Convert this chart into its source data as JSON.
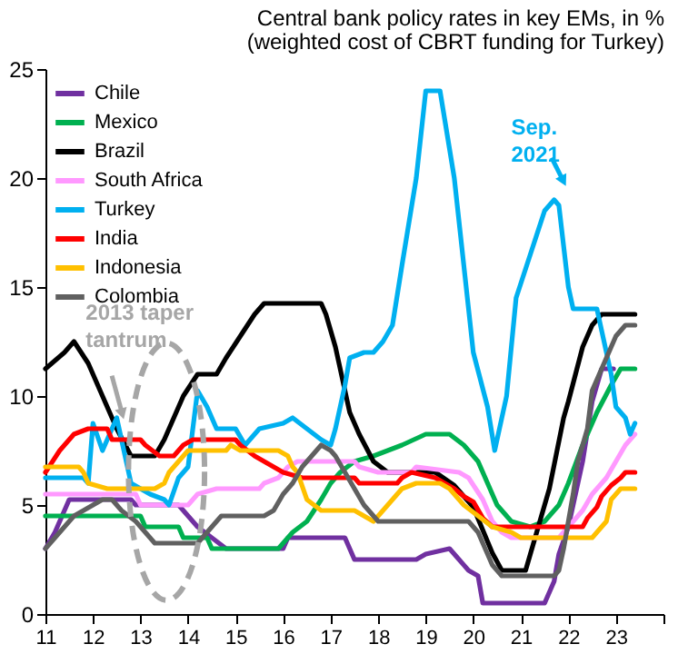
{
  "chart_data": {
    "type": "line",
    "title": "Central bank policy rates in key EMs, in %",
    "subtitle": "(weighted cost of CBRT funding for Turkey)",
    "xlim": [
      11,
      24
    ],
    "xticks": [
      11,
      12,
      13,
      14,
      15,
      16,
      17,
      18,
      19,
      20,
      21,
      22,
      23,
      {
        "value": 24,
        "label": null
      }
    ],
    "ylim": [
      0,
      25
    ],
    "yticks": [
      0,
      5,
      10,
      15,
      20,
      25
    ],
    "grid": false,
    "legend": "top left",
    "annotations": [
      "2013 taper\ntantrum",
      "Sep.\n2021"
    ],
    "series": [
      {
        "name": "Chile",
        "color": "#7030a0",
        "x": [
          11,
          11.2,
          11.4,
          11.5,
          12.8,
          12.9,
          13.8,
          14,
          14.2,
          14.5,
          14.8,
          16,
          16.1,
          17.3,
          17.5,
          18.8,
          19,
          19.5,
          19.7,
          19.9,
          20.1,
          20.2,
          21.5,
          21.7,
          21.8,
          22,
          22.3,
          22.5,
          22.7,
          22.95
        ],
        "values": [
          3,
          3.75,
          4.75,
          5.25,
          5.25,
          5,
          5,
          4.5,
          4,
          3.5,
          3,
          3,
          3.5,
          3.5,
          2.5,
          2.5,
          2.75,
          3,
          2.5,
          2,
          1.75,
          0.5,
          0.5,
          1.5,
          2.75,
          4,
          7,
          9.75,
          11.25,
          11.25
        ]
      },
      {
        "name": "Mexico",
        "color": "#00b050",
        "x": [
          11,
          13,
          13.1,
          13.8,
          13.9,
          14.4,
          14.5,
          15.9,
          16,
          16.2,
          16.5,
          16.8,
          17,
          17.2,
          17.5,
          17.9,
          18.2,
          18.5,
          19,
          19.5,
          19.8,
          20.1,
          20.3,
          20.5,
          20.8,
          21.2,
          21.5,
          21.8,
          22,
          22.3,
          22.6,
          22.9,
          23.1,
          23.4
        ],
        "values": [
          4.5,
          4.5,
          4,
          4,
          3.5,
          3.5,
          3,
          3,
          3.25,
          3.75,
          4.25,
          5.25,
          6,
          6.5,
          7,
          7.25,
          7.5,
          7.75,
          8.25,
          8.25,
          7.75,
          7,
          6,
          5,
          4.25,
          4,
          4.25,
          5,
          6,
          7.75,
          9.25,
          10.5,
          11.25,
          11.25
        ]
      },
      {
        "name": "Brazil",
        "color": "#000000",
        "x": [
          11,
          11.4,
          11.6,
          11.9,
          12.2,
          12.5,
          12.8,
          13.3,
          13.5,
          13.7,
          13.9,
          14.2,
          14.6,
          14.8,
          15.1,
          15.4,
          15.6,
          16.8,
          16.9,
          17.1,
          17.4,
          17.6,
          17.9,
          18.2,
          19.2,
          19.6,
          20,
          20.4,
          20.6,
          21.1,
          21.2,
          21.4,
          21.6,
          21.9,
          22,
          22.3,
          22.5,
          22.7,
          23.4
        ],
        "values": [
          11.25,
          12,
          12.5,
          11.5,
          10,
          8.5,
          7.25,
          7.25,
          8,
          9,
          10,
          11,
          11,
          11.75,
          12.75,
          13.75,
          14.25,
          14.25,
          13.75,
          12.25,
          9.25,
          8.25,
          7,
          6.5,
          6.5,
          5.9,
          4.9,
          2.8,
          2,
          2,
          2.75,
          4.25,
          5.75,
          9,
          9.75,
          12.25,
          13.25,
          13.75,
          13.75
        ]
      },
      {
        "name": "South Africa",
        "color": "#ff99ff",
        "x": [
          11,
          12.9,
          13,
          14,
          14.2,
          14.6,
          15.5,
          15.6,
          15.9,
          16.1,
          16.3,
          17.5,
          17.6,
          18,
          18.7,
          18.8,
          19.7,
          19.9,
          20.2,
          20.4,
          20.6,
          20.8,
          21.8,
          21.9,
          22,
          22.3,
          22.5,
          22.8,
          23,
          23.2,
          23.4
        ],
        "values": [
          5.5,
          5.5,
          5,
          5,
          5.5,
          5.75,
          5.75,
          6,
          6.25,
          6.75,
          7,
          7,
          6.75,
          6.5,
          6.5,
          6.75,
          6.5,
          6.25,
          5.25,
          4.25,
          3.75,
          3.5,
          3.5,
          3.75,
          4,
          4.75,
          5.5,
          6.25,
          7,
          7.75,
          8.25
        ]
      },
      {
        "name": "Turkey",
        "color": "#00b0f0",
        "x": [
          11,
          11.8,
          11.9,
          12,
          12.2,
          12.5,
          12.8,
          13.2,
          13.5,
          13.6,
          13.8,
          14,
          14.2,
          14.4,
          14.6,
          15,
          15.2,
          15.5,
          16,
          16.2,
          16.5,
          16.8,
          17,
          17.1,
          17.3,
          17.4,
          17.7,
          17.9,
          18.1,
          18.3,
          18.5,
          18.8,
          19,
          19.3,
          19.6,
          19.8,
          20,
          20.3,
          20.45,
          20.7,
          20.9,
          21.2,
          21.5,
          21.7,
          21.8,
          22,
          22.1,
          22.6,
          22.9,
          23,
          23.2,
          23.3,
          23.4
        ],
        "values": [
          6.25,
          6.25,
          6,
          8.75,
          7.5,
          9,
          6,
          5.5,
          5.25,
          5,
          6.25,
          6.75,
          10.25,
          9.5,
          8.5,
          8.5,
          7.75,
          8.5,
          8.75,
          9,
          8.5,
          8,
          7.75,
          8.5,
          10.5,
          11.75,
          12,
          12,
          12.5,
          13.25,
          16,
          20,
          24,
          24,
          20,
          16,
          12,
          9.5,
          7.5,
          10,
          14.5,
          16.5,
          18.5,
          19,
          18.75,
          15,
          14,
          14,
          11,
          9.5,
          9,
          8.25,
          8.75
        ]
      },
      {
        "name": "India",
        "color": "#ff0000",
        "x": [
          11,
          11.3,
          11.6,
          11.9,
          12.3,
          12.4,
          13,
          13.1,
          13.4,
          13.7,
          13.9,
          14.1,
          15,
          15.1,
          15.4,
          15.8,
          16,
          16.4,
          17.5,
          17.6,
          18.4,
          18.5,
          18.7,
          19.2,
          19.4,
          19.6,
          19.8,
          20,
          20.2,
          20.4,
          22.3,
          22.4,
          22.6,
          22.7,
          22.9,
          23.1,
          23.2,
          23.4
        ],
        "values": [
          6.5,
          7.5,
          8.25,
          8.5,
          8.5,
          8,
          8,
          7.75,
          7.25,
          7.25,
          7.75,
          8,
          8,
          7.75,
          7.25,
          6.75,
          6.5,
          6.25,
          6.25,
          6,
          6,
          6.25,
          6.5,
          6.25,
          6,
          5.75,
          5.4,
          5.15,
          4.4,
          4,
          4,
          4.4,
          4.9,
          5.4,
          5.9,
          6.25,
          6.5,
          6.5
        ]
      },
      {
        "name": "Indonesia",
        "color": "#ffc000",
        "x": [
          11,
          11.7,
          11.8,
          11.9,
          12.3,
          13.3,
          13.5,
          13.6,
          13.8,
          14,
          14.8,
          14.9,
          15.1,
          15.9,
          16.1,
          16.2,
          16.3,
          16.5,
          16.8,
          17.5,
          17.7,
          17.9,
          18,
          18.3,
          18.5,
          18.8,
          19.3,
          19.5,
          19.7,
          19.8,
          20.1,
          20.4,
          20.8,
          21,
          22.5,
          22.6,
          22.8,
          22.9,
          23.1,
          23.4
        ],
        "values": [
          6.75,
          6.75,
          6.5,
          6,
          5.75,
          5.75,
          6,
          6.5,
          7,
          7.5,
          7.5,
          7.75,
          7.5,
          7.5,
          7.25,
          6.75,
          6.5,
          5.25,
          4.75,
          4.75,
          4.5,
          4.25,
          4.5,
          5.25,
          5.75,
          6,
          6,
          5.75,
          5.25,
          5,
          4.5,
          4,
          3.75,
          3.5,
          3.5,
          3.75,
          4.25,
          5.25,
          5.75,
          5.75
        ]
      },
      {
        "name": "Colombia",
        "color": "#606060",
        "x": [
          11,
          11.2,
          11.4,
          11.6,
          11.8,
          12,
          12.2,
          12.4,
          12.6,
          12.9,
          13.1,
          13.3,
          14.2,
          14.3,
          14.4,
          14.5,
          14.7,
          15.6,
          15.8,
          16,
          16.2,
          16.4,
          16.6,
          16.8,
          17,
          17.1,
          17.3,
          17.5,
          17.7,
          17.9,
          18,
          19.9,
          20.1,
          20.2,
          20.3,
          20.4,
          20.6,
          21.7,
          21.8,
          21.9,
          22,
          22.1,
          22.2,
          22.4,
          22.5,
          22.7,
          22.9,
          23,
          23.2,
          23.4
        ],
        "values": [
          3,
          3.5,
          4,
          4.5,
          4.75,
          5,
          5.25,
          5.25,
          4.75,
          4.25,
          3.75,
          3.25,
          3.25,
          3.5,
          3.75,
          4,
          4.5,
          4.5,
          4.75,
          5.5,
          6,
          6.75,
          7.25,
          7.75,
          7.5,
          7.25,
          6.5,
          5.75,
          5,
          4.5,
          4.25,
          4.25,
          3.75,
          3.25,
          2.75,
          2.25,
          1.75,
          1.75,
          2,
          3,
          4.25,
          5.5,
          7,
          8.5,
          10.25,
          11.25,
          12.25,
          12.75,
          13.25,
          13.25
        ]
      }
    ]
  }
}
